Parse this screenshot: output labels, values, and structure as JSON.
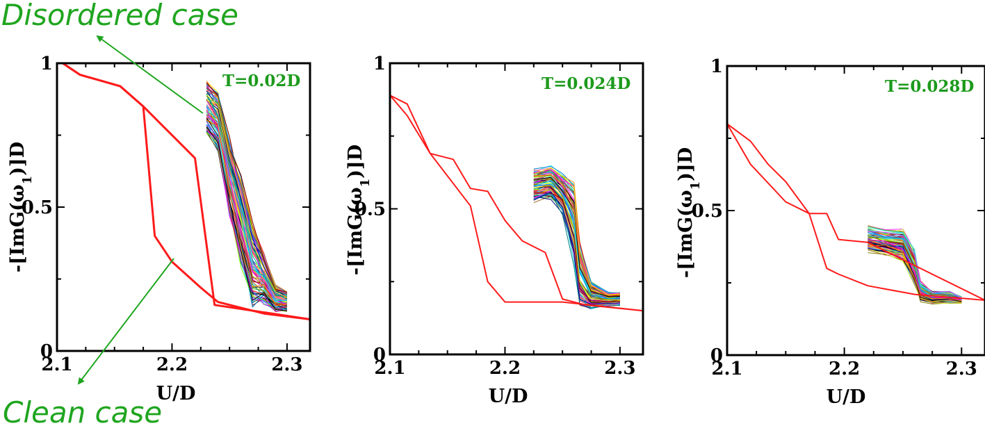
{
  "annotations": {
    "disordered_case": "Disordered case",
    "clean_case": "Clean case",
    "color": "#1fa51f"
  },
  "chart_data": [
    {
      "type": "line",
      "title": "T=0.02D",
      "xlabel": "U/D",
      "ylabel_parts": [
        "-[ImG(",
        "ω",
        "1",
        ")]D"
      ],
      "xlim": [
        2.1,
        2.32
      ],
      "ylim": [
        0,
        1
      ],
      "xticks": [
        2.1,
        2.2,
        2.3
      ],
      "yticks": [
        0,
        0.5,
        1
      ],
      "xtick_labels": [
        "2.1",
        "2.2",
        "2.3"
      ],
      "ytick_labels": [
        "0",
        "0.5",
        "1"
      ],
      "clean_color": "#ff1a1a",
      "clean_series": [
        {
          "name": "forward",
          "x": [
            2.105,
            2.12,
            2.155,
            2.175,
            2.19,
            2.22,
            2.237,
            2.32
          ],
          "y": [
            1.0,
            0.96,
            0.92,
            0.85,
            0.79,
            0.67,
            0.16,
            0.11
          ]
        },
        {
          "name": "backward",
          "x": [
            2.32,
            2.28,
            2.24,
            2.225,
            2.2,
            2.185,
            2.175,
            2.155,
            2.12,
            2.105
          ],
          "y": [
            0.11,
            0.13,
            0.17,
            0.22,
            0.31,
            0.4,
            0.85,
            0.92,
            0.96,
            1.0
          ]
        }
      ],
      "disorder": {
        "n": 90,
        "x": [
          2.23,
          2.24,
          2.25,
          2.26,
          2.27,
          2.28,
          2.29,
          2.3
        ],
        "y_center": [
          0.85,
          0.8,
          0.6,
          0.45,
          0.3,
          0.25,
          0.18,
          0.17
        ],
        "spread": [
          0.08,
          0.09,
          0.12,
          0.14,
          0.13,
          0.08,
          0.04,
          0.03
        ]
      }
    },
    {
      "type": "line",
      "title": "T=0.024D",
      "xlabel": "U/D",
      "ylabel_parts": [
        "-[ImG(",
        "ω",
        "1",
        ")]D"
      ],
      "xlim": [
        2.1,
        2.32
      ],
      "ylim": [
        0,
        1
      ],
      "xticks": [
        2.1,
        2.2,
        2.3
      ],
      "yticks": [
        0,
        0.5,
        1
      ],
      "xtick_labels": [
        "2.1",
        "2.2",
        "2.3"
      ],
      "ytick_labels": [
        "0",
        "0.5",
        "1"
      ],
      "clean_color": "#ff1a1a",
      "clean_series": [
        {
          "name": "forward",
          "x": [
            2.1,
            2.115,
            2.135,
            2.155,
            2.17,
            2.185,
            2.2,
            2.215,
            2.235,
            2.25,
            2.27,
            2.32
          ],
          "y": [
            0.89,
            0.86,
            0.69,
            0.67,
            0.57,
            0.56,
            0.46,
            0.39,
            0.35,
            0.19,
            0.17,
            0.15
          ]
        },
        {
          "name": "backward",
          "x": [
            2.32,
            2.25,
            2.2,
            2.185,
            2.17,
            2.135,
            2.115,
            2.1
          ],
          "y": [
            0.15,
            0.18,
            0.18,
            0.25,
            0.51,
            0.69,
            0.82,
            0.89
          ]
        }
      ],
      "disorder": {
        "n": 90,
        "x": [
          2.225,
          2.24,
          2.25,
          2.26,
          2.265,
          2.275,
          2.29,
          2.3
        ],
        "y_center": [
          0.58,
          0.59,
          0.55,
          0.45,
          0.28,
          0.2,
          0.19,
          0.19
        ],
        "spread": [
          0.05,
          0.05,
          0.06,
          0.12,
          0.1,
          0.04,
          0.02,
          0.02
        ]
      }
    },
    {
      "type": "line",
      "title": "T=0.028D",
      "xlabel": "U/D",
      "ylabel_parts": [
        "-[ImG(",
        "ω",
        "1",
        ")]D"
      ],
      "xlim": [
        2.1,
        2.32
      ],
      "ylim": [
        0,
        1
      ],
      "xticks": [
        2.1,
        2.2,
        2.3
      ],
      "yticks": [
        0,
        0.5,
        1
      ],
      "xtick_labels": [
        "2.1",
        "2.2",
        "2.3"
      ],
      "ytick_labels": [
        "0",
        "0.5",
        "1"
      ],
      "clean_color": "#ff1a1a",
      "clean_series": [
        {
          "name": "forward",
          "x": [
            2.1,
            2.12,
            2.135,
            2.15,
            2.17,
            2.185,
            2.195,
            2.22,
            2.32
          ],
          "y": [
            0.8,
            0.74,
            0.66,
            0.6,
            0.49,
            0.49,
            0.4,
            0.39,
            0.19
          ]
        },
        {
          "name": "backward",
          "x": [
            2.32,
            2.26,
            2.22,
            2.195,
            2.185,
            2.17,
            2.15,
            2.12,
            2.1
          ],
          "y": [
            0.19,
            0.21,
            0.24,
            0.28,
            0.3,
            0.49,
            0.53,
            0.66,
            0.8
          ]
        }
      ],
      "disorder": {
        "n": 90,
        "x": [
          2.22,
          2.235,
          2.25,
          2.26,
          2.265,
          2.275,
          2.29,
          2.3
        ],
        "y_center": [
          0.4,
          0.39,
          0.38,
          0.3,
          0.22,
          0.2,
          0.2,
          0.19
        ],
        "spread": [
          0.04,
          0.04,
          0.05,
          0.06,
          0.03,
          0.02,
          0.02,
          0.01
        ]
      }
    }
  ]
}
